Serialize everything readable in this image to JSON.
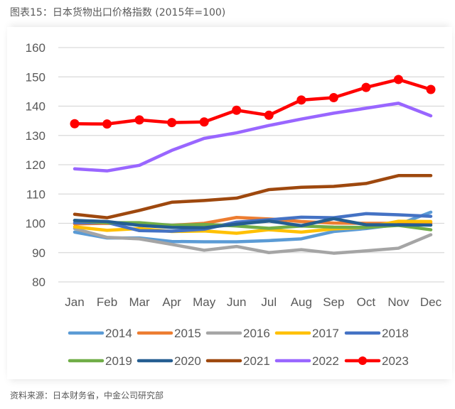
{
  "header": {
    "title": "图表15：日本货物出口价格指数 (2015年=100)"
  },
  "footer": {
    "source": "资料来源：日本财务省，中金公司研究部"
  },
  "chart_data": {
    "type": "line",
    "title": "图表15：日本货物出口价格指数 (2015年=100)",
    "xlabel": "",
    "ylabel": "",
    "ylim": [
      80,
      160
    ],
    "yticks": [
      80,
      90,
      100,
      110,
      120,
      130,
      140,
      150,
      160
    ],
    "grid": true,
    "legend": "bottom",
    "categories": [
      "Jan",
      "Feb",
      "Mar",
      "Apr",
      "May",
      "Jun",
      "Jul",
      "Aug",
      "Sep",
      "Oct",
      "Nov",
      "Dec"
    ],
    "series": [
      {
        "name": "2014",
        "color": "#5B9BD5",
        "markers": false,
        "values": [
          97.0,
          95.0,
          95.0,
          93.8,
          93.7,
          93.7,
          94.1,
          94.7,
          97.2,
          98.2,
          99.6,
          103.8
        ]
      },
      {
        "name": "2015",
        "color": "#ED7D31",
        "markers": false,
        "values": [
          99.8,
          100.0,
          99.8,
          99.3,
          100.0,
          102.0,
          101.5,
          100.6,
          100.1,
          100.0,
          100.0,
          100.0
        ]
      },
      {
        "name": "2016",
        "color": "#A5A5A5",
        "markers": false,
        "values": [
          98.2,
          95.2,
          94.7,
          92.8,
          90.8,
          92.1,
          90.0,
          91.0,
          89.8,
          90.6,
          91.5,
          96.1
        ]
      },
      {
        "name": "2017",
        "color": "#FFC000",
        "markers": false,
        "values": [
          98.8,
          97.6,
          98.2,
          97.2,
          97.4,
          96.6,
          97.8,
          97.0,
          98.1,
          98.6,
          100.7,
          100.6
        ]
      },
      {
        "name": "2018",
        "color": "#4472C4",
        "markers": false,
        "values": [
          100.2,
          100.3,
          97.5,
          97.3,
          98.0,
          100.4,
          101.2,
          102.1,
          101.9,
          103.3,
          102.9,
          102.4
        ]
      },
      {
        "name": "2019",
        "color": "#70AD47",
        "markers": false,
        "values": [
          101.0,
          100.2,
          100.2,
          99.3,
          99.6,
          99.1,
          98.3,
          99.1,
          98.7,
          98.6,
          99.3,
          97.8
        ]
      },
      {
        "name": "2020",
        "color": "#255E91",
        "markers": false,
        "values": [
          101.0,
          100.6,
          99.3,
          98.6,
          98.5,
          99.7,
          100.8,
          99.2,
          101.6,
          99.5,
          99.5,
          99.4
        ]
      },
      {
        "name": "2021",
        "color": "#9E480E",
        "markers": false,
        "values": [
          103.1,
          101.9,
          104.4,
          107.2,
          107.8,
          108.6,
          111.5,
          112.3,
          112.6,
          113.6,
          116.3,
          116.3
        ]
      },
      {
        "name": "2022",
        "color": "#9966FF",
        "markers": false,
        "values": [
          118.6,
          117.9,
          119.8,
          124.9,
          129.0,
          130.9,
          133.4,
          135.6,
          137.6,
          139.3,
          141.0,
          136.7
        ]
      },
      {
        "name": "2023",
        "color": "#FF0000",
        "markers": true,
        "values": [
          134.0,
          133.9,
          135.3,
          134.4,
          134.6,
          138.6,
          136.9,
          142.1,
          142.9,
          146.4,
          149.1,
          145.7
        ]
      }
    ]
  }
}
